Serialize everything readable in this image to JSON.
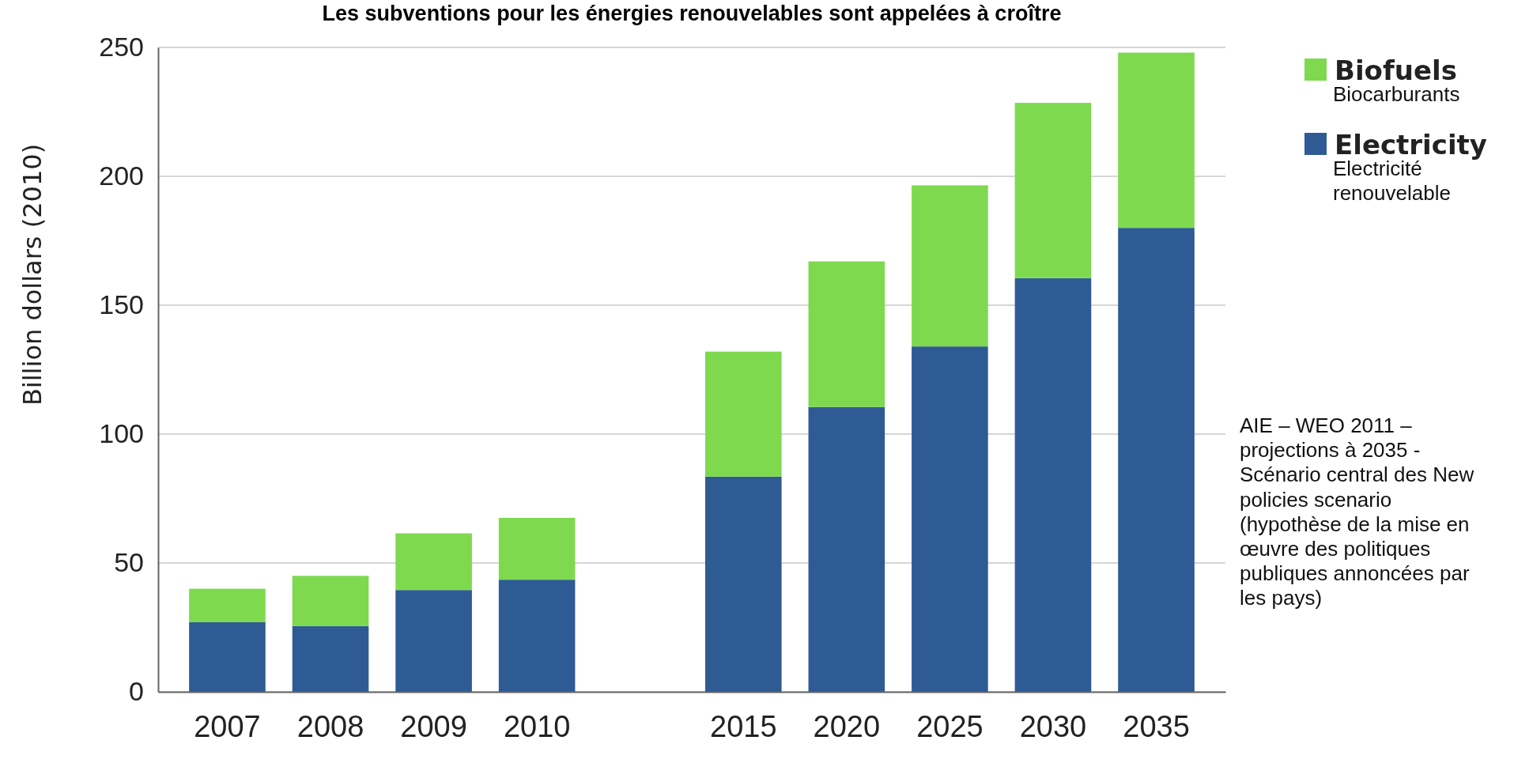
{
  "chart_data": {
    "type": "bar",
    "stacked": true,
    "title": "Les subventions pour les énergies renouvelables sont appelées à croître",
    "ylabel": "Billion dollars (2010)",
    "categories": [
      "2007",
      "2008",
      "2009",
      "2010",
      null,
      "2015",
      "2020",
      "2025",
      "2030",
      "2035"
    ],
    "series": [
      {
        "name": "Electricity",
        "color": "#2f5b94",
        "values": [
          27,
          25.5,
          39.5,
          43.5,
          null,
          83.5,
          110.5,
          134,
          160.5,
          180
        ]
      },
      {
        "name": "Biofuels",
        "color": "#7ed94f",
        "values": [
          13,
          19.5,
          22,
          24,
          null,
          48.5,
          56.5,
          62.5,
          68,
          68
        ]
      }
    ],
    "ylim": [
      0,
      250
    ],
    "yticks": [
      0,
      50,
      100,
      150,
      200,
      250
    ],
    "grid": "y",
    "legend": "right",
    "annotations": [
      "Biocarburants",
      "Electricité renouvelable",
      "AIE – WEO 2011 – projections à 2035 - Scénario central des New policies scenario (hypothèse de la mise en œuvre des politiques publiques annoncées par les pays)"
    ]
  }
}
